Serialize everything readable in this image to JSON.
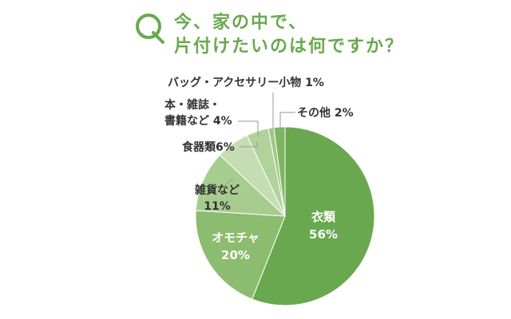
{
  "title": {
    "question_mark": "Q",
    "line1": "今、家の中で、",
    "line2": "片付けたいのは何ですか？"
  },
  "colors": {
    "accent": "#6aa84f",
    "slices": [
      "#6aa84f",
      "#8cbc6f",
      "#a7cc8f",
      "#c5ddb3",
      "#b2d29c",
      "#9ec784",
      "#7fb562"
    ]
  },
  "chart_data": {
    "type": "pie",
    "title": "今、家の中で、片付けたいのは何ですか？",
    "start_angle_deg": 0,
    "direction": "clockwise",
    "slices": [
      {
        "label": "衣類",
        "value": 56,
        "display": "56%"
      },
      {
        "label": "オモチャ",
        "value": 20,
        "display": "20%"
      },
      {
        "label": "雑貨など",
        "value": 11,
        "display": "11%"
      },
      {
        "label": "食器類",
        "value": 6,
        "display": "6%"
      },
      {
        "label": "本・雑誌・書籍など",
        "value": 4,
        "display": "4%"
      },
      {
        "label": "バッグ・アクセサリー小物",
        "value": 1,
        "display": "1%"
      },
      {
        "label": "その他",
        "value": 2,
        "display": "2%"
      }
    ],
    "labels": [
      {
        "lines": [
          "衣類",
          "56%"
        ]
      },
      {
        "lines": [
          "オモチャ",
          "20%"
        ]
      },
      {
        "lines": [
          "雑貨など",
          "11%"
        ]
      },
      {
        "lines": [
          "食器類6%"
        ]
      },
      {
        "lines": [
          "本・雑誌・",
          "書籍など 4%"
        ]
      },
      {
        "lines": [
          "バッグ・アクセサリー小物 1%"
        ]
      },
      {
        "lines": [
          "その他 2%"
        ]
      }
    ]
  }
}
